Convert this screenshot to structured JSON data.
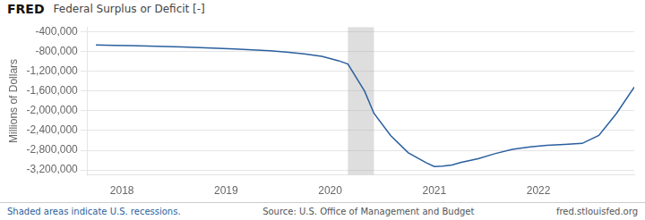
{
  "chart_data": {
    "type": "line",
    "title": "Federal Surplus or Deficit [-]",
    "y_label": "Millions of Dollars",
    "annotations": [
      "FRED",
      "Shaded areas indicate U.S. recessions.",
      "Source: U.S. Office of Management and Budget",
      "fred.stlouisfed.org"
    ],
    "color": "#2a5f9e",
    "x": [
      2017.75,
      2017.92,
      2018.08,
      2018.25,
      2018.42,
      2018.58,
      2018.75,
      2018.92,
      2019.08,
      2019.25,
      2019.42,
      2019.58,
      2019.75,
      2019.92,
      2020.08,
      2020.17,
      2020.33,
      2020.42,
      2020.58,
      2020.75,
      2020.92,
      2021.0,
      2021.08,
      2021.17,
      2021.25,
      2021.42,
      2021.58,
      2021.75,
      2021.92,
      2022.08,
      2022.25,
      2022.42,
      2022.58,
      2022.75,
      2022.92
    ],
    "values": [
      -665000,
      -672000,
      -678000,
      -685000,
      -695000,
      -705000,
      -718000,
      -730000,
      -745000,
      -762000,
      -782000,
      -810000,
      -845000,
      -895000,
      -984000,
      -1050000,
      -1600000,
      -2050000,
      -2500000,
      -2850000,
      -3050000,
      -3130000,
      -3120000,
      -3100000,
      -3050000,
      -2970000,
      -2870000,
      -2780000,
      -2730000,
      -2700000,
      -2680000,
      -2660000,
      -2500000,
      -2050000,
      -1520000
    ],
    "shaded_spans": [
      [
        2020.17,
        2020.42
      ]
    ],
    "xlim": [
      2017.67,
      2022.92
    ],
    "xticks": [
      2018,
      2019,
      2020,
      2021,
      2022
    ],
    "ylim": [
      -3300000,
      -300000
    ],
    "yticks": [
      {
        "value": -3200000,
        "label": "-3,200,000"
      },
      {
        "value": -2800000,
        "label": "-2,800,000"
      },
      {
        "value": -2400000,
        "label": "-2,400,000"
      },
      {
        "value": -2000000,
        "label": "-2,000,000"
      },
      {
        "value": -1600000,
        "label": "-1,600,000"
      },
      {
        "value": -1200000,
        "label": "-1,200,000"
      },
      {
        "value": -800000,
        "label": "-800,000"
      },
      {
        "value": -400000,
        "label": "-400,000"
      }
    ],
    "grid": "y"
  }
}
